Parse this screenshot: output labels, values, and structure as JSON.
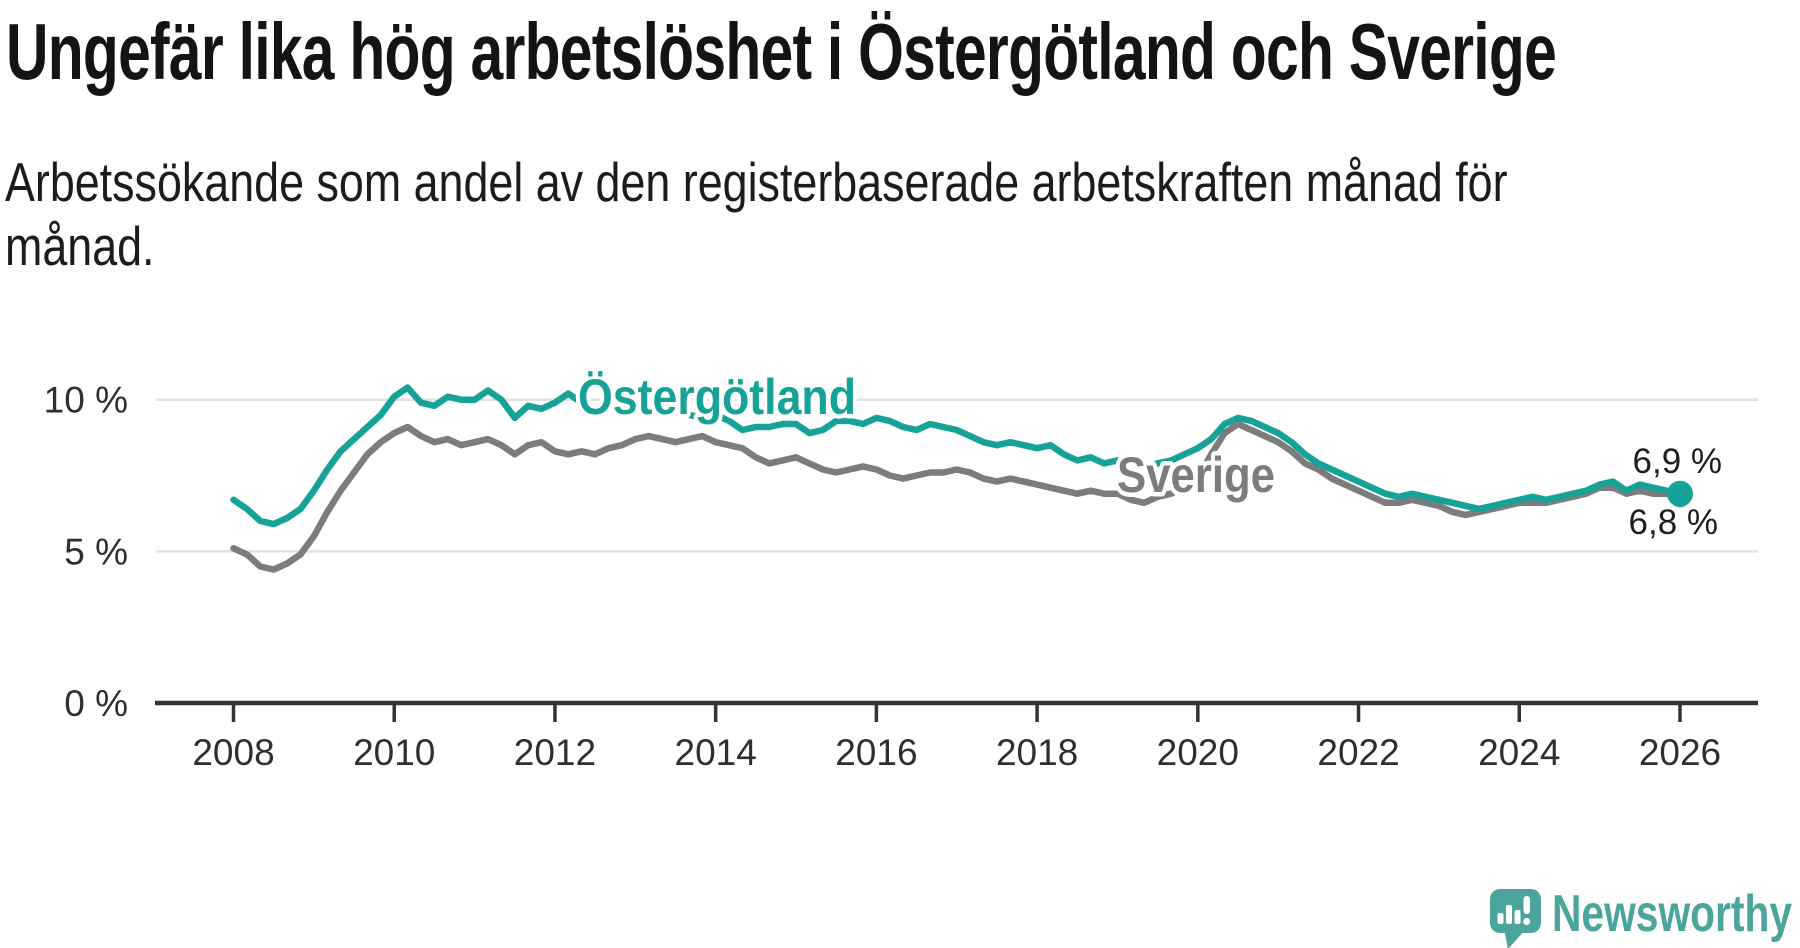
{
  "header": {
    "title": "Ungefär lika hög arbetslöshet i Östergötland och Sverige",
    "subtitle": "Arbetssökande som andel av den registerbaserade arbetskraften månad för månad."
  },
  "chart_data": {
    "type": "line",
    "title": "Ungefär lika hög arbetslöshet i Östergötland och Sverige",
    "xlabel": "",
    "ylabel": "",
    "unit": "%",
    "grid": "horizontal",
    "x_start_year": 2008,
    "x_step_months": 2,
    "x_end_year": 2026,
    "xlim": [
      2007.1,
      2027
    ],
    "ylim": [
      0,
      11.5
    ],
    "x_ticks": [
      "2008",
      "2010",
      "2012",
      "2014",
      "2016",
      "2018",
      "2020",
      "2022",
      "2024",
      "2026"
    ],
    "y_ticks": [
      {
        "v": 10,
        "label": "10 %"
      },
      {
        "v": 5,
        "label": "5 %"
      },
      {
        "v": 0,
        "label": "0 %"
      }
    ],
    "series": [
      {
        "name": "Sverige",
        "color": "#7c7c7c",
        "end_label": "6,8 %",
        "end_value": 6.8,
        "values": [
          5.1,
          4.9,
          4.5,
          4.4,
          4.6,
          4.9,
          5.5,
          6.3,
          7.0,
          7.6,
          8.2,
          8.6,
          8.9,
          9.1,
          8.8,
          8.6,
          8.7,
          8.5,
          8.6,
          8.7,
          8.5,
          8.2,
          8.5,
          8.6,
          8.3,
          8.2,
          8.3,
          8.2,
          8.4,
          8.5,
          8.7,
          8.8,
          8.7,
          8.6,
          8.7,
          8.8,
          8.6,
          8.5,
          8.4,
          8.1,
          7.9,
          8.0,
          8.1,
          7.9,
          7.7,
          7.6,
          7.7,
          7.8,
          7.7,
          7.5,
          7.4,
          7.5,
          7.6,
          7.6,
          7.7,
          7.6,
          7.4,
          7.3,
          7.4,
          7.3,
          7.2,
          7.1,
          7.0,
          6.9,
          7.0,
          6.9,
          6.9,
          6.7,
          6.6,
          6.8,
          6.9,
          7.1,
          7.4,
          8.2,
          8.9,
          9.2,
          9.0,
          8.8,
          8.6,
          8.3,
          7.9,
          7.7,
          7.4,
          7.2,
          7.0,
          6.8,
          6.6,
          6.6,
          6.7,
          6.6,
          6.5,
          6.3,
          6.2,
          6.3,
          6.4,
          6.5,
          6.6,
          6.6,
          6.6,
          6.7,
          6.8,
          6.9,
          7.1,
          7.1,
          6.9,
          7.0,
          6.9,
          6.9,
          6.8
        ]
      },
      {
        "name": "Östergötland",
        "color": "#16a296",
        "end_label": "6,9 %",
        "end_value": 6.9,
        "values": [
          6.7,
          6.4,
          6.0,
          5.9,
          6.1,
          6.4,
          7.0,
          7.7,
          8.3,
          8.7,
          9.1,
          9.5,
          10.1,
          10.4,
          9.9,
          9.8,
          10.1,
          10.0,
          10.0,
          10.3,
          10.0,
          9.4,
          9.8,
          9.7,
          9.9,
          10.2,
          9.9,
          9.7,
          9.9,
          9.8,
          9.9,
          10.0,
          9.8,
          9.6,
          9.5,
          9.4,
          9.5,
          9.3,
          9.0,
          9.1,
          9.1,
          9.2,
          9.2,
          8.9,
          9.0,
          9.3,
          9.3,
          9.2,
          9.4,
          9.3,
          9.1,
          9.0,
          9.2,
          9.1,
          9.0,
          8.8,
          8.6,
          8.5,
          8.6,
          8.5,
          8.4,
          8.5,
          8.2,
          8.0,
          8.1,
          7.9,
          8.0,
          7.9,
          7.8,
          7.9,
          8.0,
          8.2,
          8.4,
          8.7,
          9.2,
          9.4,
          9.3,
          9.1,
          8.9,
          8.6,
          8.2,
          7.9,
          7.7,
          7.5,
          7.3,
          7.1,
          6.9,
          6.8,
          6.9,
          6.8,
          6.7,
          6.6,
          6.5,
          6.4,
          6.5,
          6.6,
          6.7,
          6.8,
          6.7,
          6.8,
          6.9,
          7.0,
          7.2,
          7.3,
          7.0,
          7.2,
          7.1,
          7.0,
          6.9
        ]
      }
    ]
  },
  "branding": {
    "name": "Newsworthy",
    "color": "#4ba59d"
  }
}
